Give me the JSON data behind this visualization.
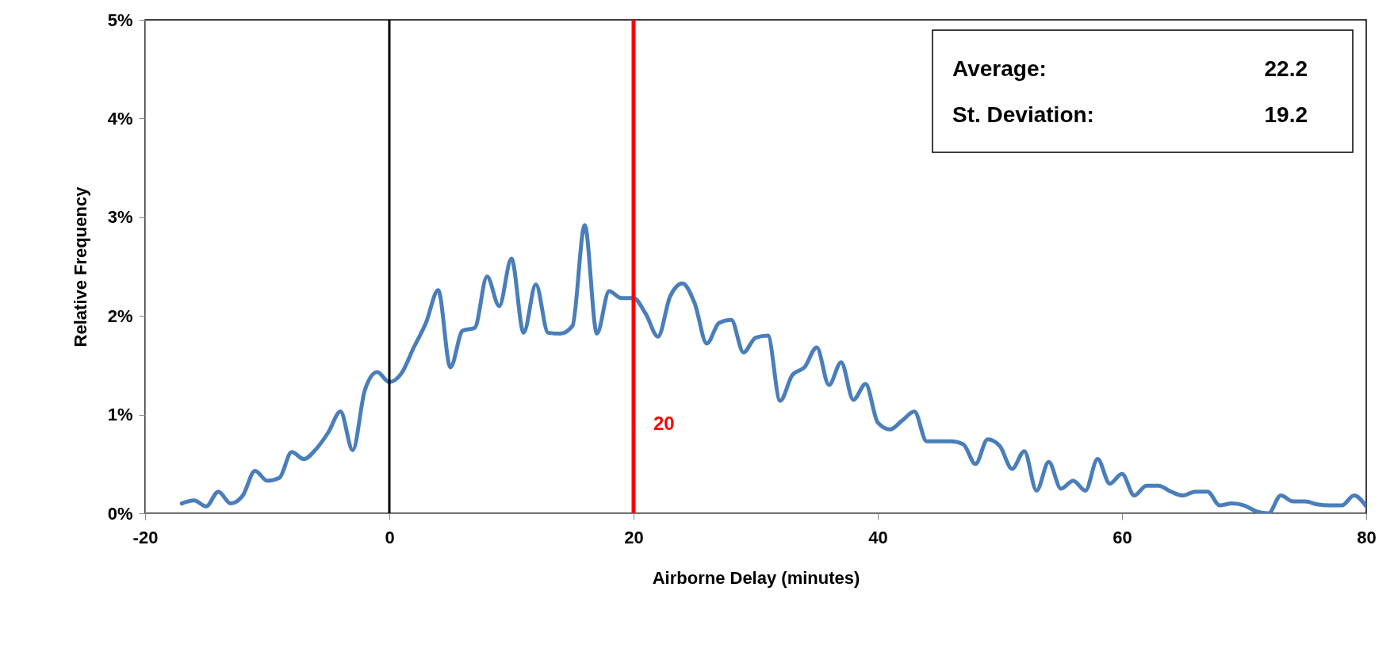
{
  "chart_data": {
    "type": "line",
    "xlabel": "Airborne Delay (minutes)",
    "ylabel": "Relative Frequency",
    "x": [
      -17,
      -16,
      -15,
      -14,
      -13,
      -12,
      -11,
      -10,
      -9,
      -8,
      -7,
      -6,
      -5,
      -4,
      -3,
      -2,
      -1,
      0,
      1,
      2,
      3,
      4,
      5,
      6,
      7,
      8,
      9,
      10,
      11,
      12,
      13,
      14,
      15,
      16,
      17,
      18,
      19,
      20,
      21,
      22,
      23,
      24,
      25,
      26,
      27,
      28,
      29,
      30,
      31,
      32,
      33,
      34,
      35,
      36,
      37,
      38,
      39,
      40,
      41,
      42,
      43,
      44,
      45,
      46,
      47,
      48,
      49,
      50,
      51,
      52,
      53,
      54,
      55,
      56,
      57,
      58,
      59,
      60,
      61,
      62,
      63,
      64,
      65,
      66,
      67,
      68,
      69,
      70,
      71,
      72,
      73,
      74,
      75,
      76,
      77,
      78,
      79,
      80
    ],
    "series": [
      {
        "color": "#4a7ebb",
        "values": [
          0.1,
          0.13,
          0.07,
          0.22,
          0.1,
          0.18,
          0.43,
          0.33,
          0.36,
          0.62,
          0.55,
          0.65,
          0.82,
          1.03,
          0.64,
          1.25,
          1.43,
          1.33,
          1.42,
          1.68,
          1.93,
          2.26,
          1.48,
          1.85,
          1.88,
          2.4,
          2.1,
          2.58,
          1.83,
          2.32,
          1.83,
          1.82,
          1.9,
          2.92,
          1.82,
          2.25,
          2.18,
          2.18,
          2.02,
          1.79,
          2.2,
          2.33,
          2.13,
          1.72,
          1.93,
          1.96,
          1.63,
          1.78,
          1.8,
          1.14,
          1.4,
          1.48,
          1.68,
          1.3,
          1.53,
          1.15,
          1.31,
          0.92,
          0.85,
          0.94,
          1.03,
          0.73,
          0.73,
          0.73,
          0.7,
          0.5,
          0.75,
          0.68,
          0.45,
          0.63,
          0.23,
          0.52,
          0.25,
          0.33,
          0.23,
          0.55,
          0.3,
          0.4,
          0.18,
          0.28,
          0.28,
          0.22,
          0.18,
          0.22,
          0.22,
          0.08,
          0.1,
          0.08,
          0.02,
          0.0,
          0.18,
          0.12,
          0.12,
          0.09,
          0.08,
          0.08,
          0.18,
          0.07
        ]
      }
    ],
    "xlim": [
      -20,
      80
    ],
    "xticks": [
      -20,
      0,
      20,
      40,
      60,
      80
    ],
    "ylim": [
      0,
      5
    ],
    "yticks": [
      {
        "value": 0,
        "label": "0%"
      },
      {
        "value": 1,
        "label": "1%"
      },
      {
        "value": 2,
        "label": "2%"
      },
      {
        "value": 3,
        "label": "3%"
      },
      {
        "value": 4,
        "label": "4%"
      },
      {
        "value": 5,
        "label": "5%"
      }
    ],
    "grid": false,
    "marker": "none",
    "line_style": "solid",
    "ref_lines": [
      {
        "axis": "x",
        "value": 0,
        "color": "#000000"
      },
      {
        "axis": "x",
        "value": 20,
        "label": "20",
        "color": "#ff0000"
      }
    ],
    "annotations": [
      "Average:",
      "22.2",
      "St. Deviation:",
      "19.2"
    ]
  }
}
